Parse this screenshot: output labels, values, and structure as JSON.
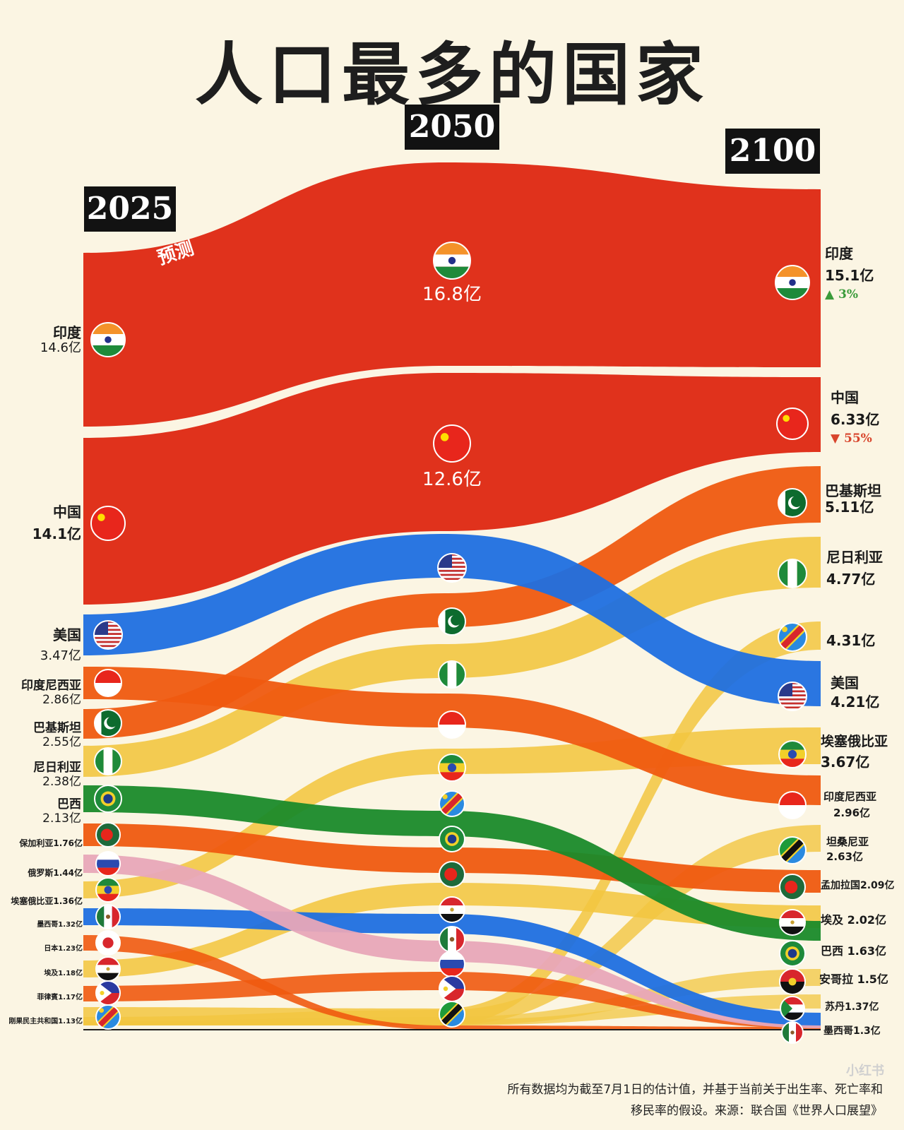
{
  "title": "人口最多的国家",
  "years": [
    "2025",
    "2050",
    "2100"
  ],
  "forecast_label": "预测",
  "chart_data": {
    "type": "sankey",
    "title": "人口最多的国家",
    "unit": "亿",
    "columns": [
      "2025",
      "2050",
      "2100"
    ],
    "y2025": [
      {
        "country": "印度",
        "label": "14.6亿",
        "value": 14.6
      },
      {
        "country": "中国",
        "label": "14.1亿",
        "value": 14.1
      },
      {
        "country": "美国",
        "label": "3.47亿",
        "value": 3.47
      },
      {
        "country": "印度尼西亚",
        "label": "2.86亿",
        "value": 2.86
      },
      {
        "country": "巴基斯坦",
        "label": "2.55亿",
        "value": 2.55
      },
      {
        "country": "尼日利亚",
        "label": "2.38亿",
        "value": 2.38
      },
      {
        "country": "巴西",
        "label": "2.13亿",
        "value": 2.13
      },
      {
        "country": "保加利亚",
        "label": "1.76亿",
        "value": 1.76
      },
      {
        "country": "俄罗斯",
        "label": "1.44亿",
        "value": 1.44
      },
      {
        "country": "埃塞俄比亚",
        "label": "1.36亿",
        "value": 1.36
      },
      {
        "country": "墨西哥",
        "label": "1.32亿",
        "value": 1.32
      },
      {
        "country": "日本",
        "label": "1.23亿",
        "value": 1.23
      },
      {
        "country": "埃及",
        "label": "1.18亿",
        "value": 1.18
      },
      {
        "country": "菲律宾",
        "label": "1.17亿",
        "value": 1.17
      },
      {
        "country": "刚果民主共和国",
        "label": "1.13亿",
        "value": 1.13
      }
    ],
    "y2050": [
      {
        "country": "印度",
        "label": "16.8亿",
        "value": 16.8
      },
      {
        "country": "中国",
        "label": "12.6亿",
        "value": 12.6
      }
    ],
    "y2100": [
      {
        "country": "印度",
        "label": "15.1亿",
        "value": 15.1,
        "change": "▲ 3%"
      },
      {
        "country": "中国",
        "label": "6.33亿",
        "value": 6.33,
        "change": "▼ 55%"
      },
      {
        "country": "巴基斯坦",
        "label": "5.11亿",
        "value": 5.11
      },
      {
        "country": "尼日利亚",
        "label": "4.77亿",
        "value": 4.77
      },
      {
        "country": "刚果民主共和国",
        "label": "4.31亿",
        "value": 4.31
      },
      {
        "country": "美国",
        "label": "4.21亿",
        "value": 4.21
      },
      {
        "country": "埃塞俄比亚",
        "label": "3.67亿",
        "value": 3.67
      },
      {
        "country": "印度尼西亚",
        "label": "2.96亿",
        "value": 2.96
      },
      {
        "country": "坦桑尼亚",
        "label": "2.63亿",
        "value": 2.63
      },
      {
        "country": "孟加拉国",
        "label": "2.09亿",
        "value": 2.09
      },
      {
        "country": "埃及",
        "label": "2.02亿",
        "value": 2.02
      },
      {
        "country": "巴西",
        "label": "1.63亿",
        "value": 1.63
      },
      {
        "country": "安哥拉",
        "label": "1.5亿",
        "value": 1.5
      },
      {
        "country": "苏丹",
        "label": "1.37亿",
        "value": 1.37
      },
      {
        "country": "墨西哥",
        "label": "1.3亿",
        "value": 1.3
      }
    ],
    "colors": {
      "india_china": "#e0321c",
      "usa": "#1f6fe0",
      "orange": "#ef5a10",
      "yellow": "#f2c640",
      "green": "#1a8a2a",
      "pink": "#e8a6b8"
    }
  },
  "labels_2025": {
    "india_name": "印度",
    "india_val": "14.6亿",
    "china_name": "中国",
    "china_val": "14.1亿",
    "usa_name": "美国",
    "usa_val": "3.47亿",
    "indonesia_name": "印度尼西亚",
    "indonesia_val": "2.86亿",
    "pakistan_name": "巴基斯坦",
    "pakistan_val": "2.55亿",
    "nigeria_name": "尼日利亚",
    "nigeria_val": "2.38亿",
    "brazil_name": "巴西",
    "brazil_val": "2.13亿",
    "bulgaria": "保加利亚1.76亿",
    "russia": "俄罗斯1.44亿",
    "ethiopia": "埃塞俄比亚1.36亿",
    "mexico": "墨西哥1.32亿",
    "japan": "日本1.23亿",
    "egypt": "埃及1.18亿",
    "philippines": "菲律賓1.17亿",
    "drc": "刚果民主共和国1.13亿"
  },
  "labels_2050": {
    "india_val": "16.8亿",
    "china_val": "12.6亿"
  },
  "labels_2100": {
    "india_name": "印度",
    "india_val": "15.1亿",
    "india_chg": "▲ 3%",
    "china_name": "中国",
    "china_val": "6.33亿",
    "china_chg": "▼ 55%",
    "pakistan_name": "巴基斯坦",
    "pakistan_val": "5.11亿",
    "nigeria_name": "尼日利亚",
    "nigeria_val": "4.77亿",
    "drc_val": "4.31亿",
    "usa_name": "美国",
    "usa_val": "4.21亿",
    "ethiopia_name": "埃塞俄比亚",
    "ethiopia_val": "3.67亿",
    "indonesia_name": "印度尼西亚",
    "indonesia_val": "2.96亿",
    "tanzania_name": "坦桑尼亚",
    "tanzania_val": "2.63亿",
    "bangladesh": "孟加拉国2.09亿",
    "egypt": "埃及 2.02亿",
    "brazil": "巴西 1.63亿",
    "angola": "安哥拉 1.5亿",
    "sudan": "苏丹1.37亿",
    "mexico": "墨西哥1.3亿"
  },
  "footnote_line1": "所有数据均为截至7月1日的估计值，并基于当前关于出生率、死亡率和",
  "footnote_line2": "移民率的假设。来源：联合国《世界人口展望》",
  "brand": "小红书"
}
